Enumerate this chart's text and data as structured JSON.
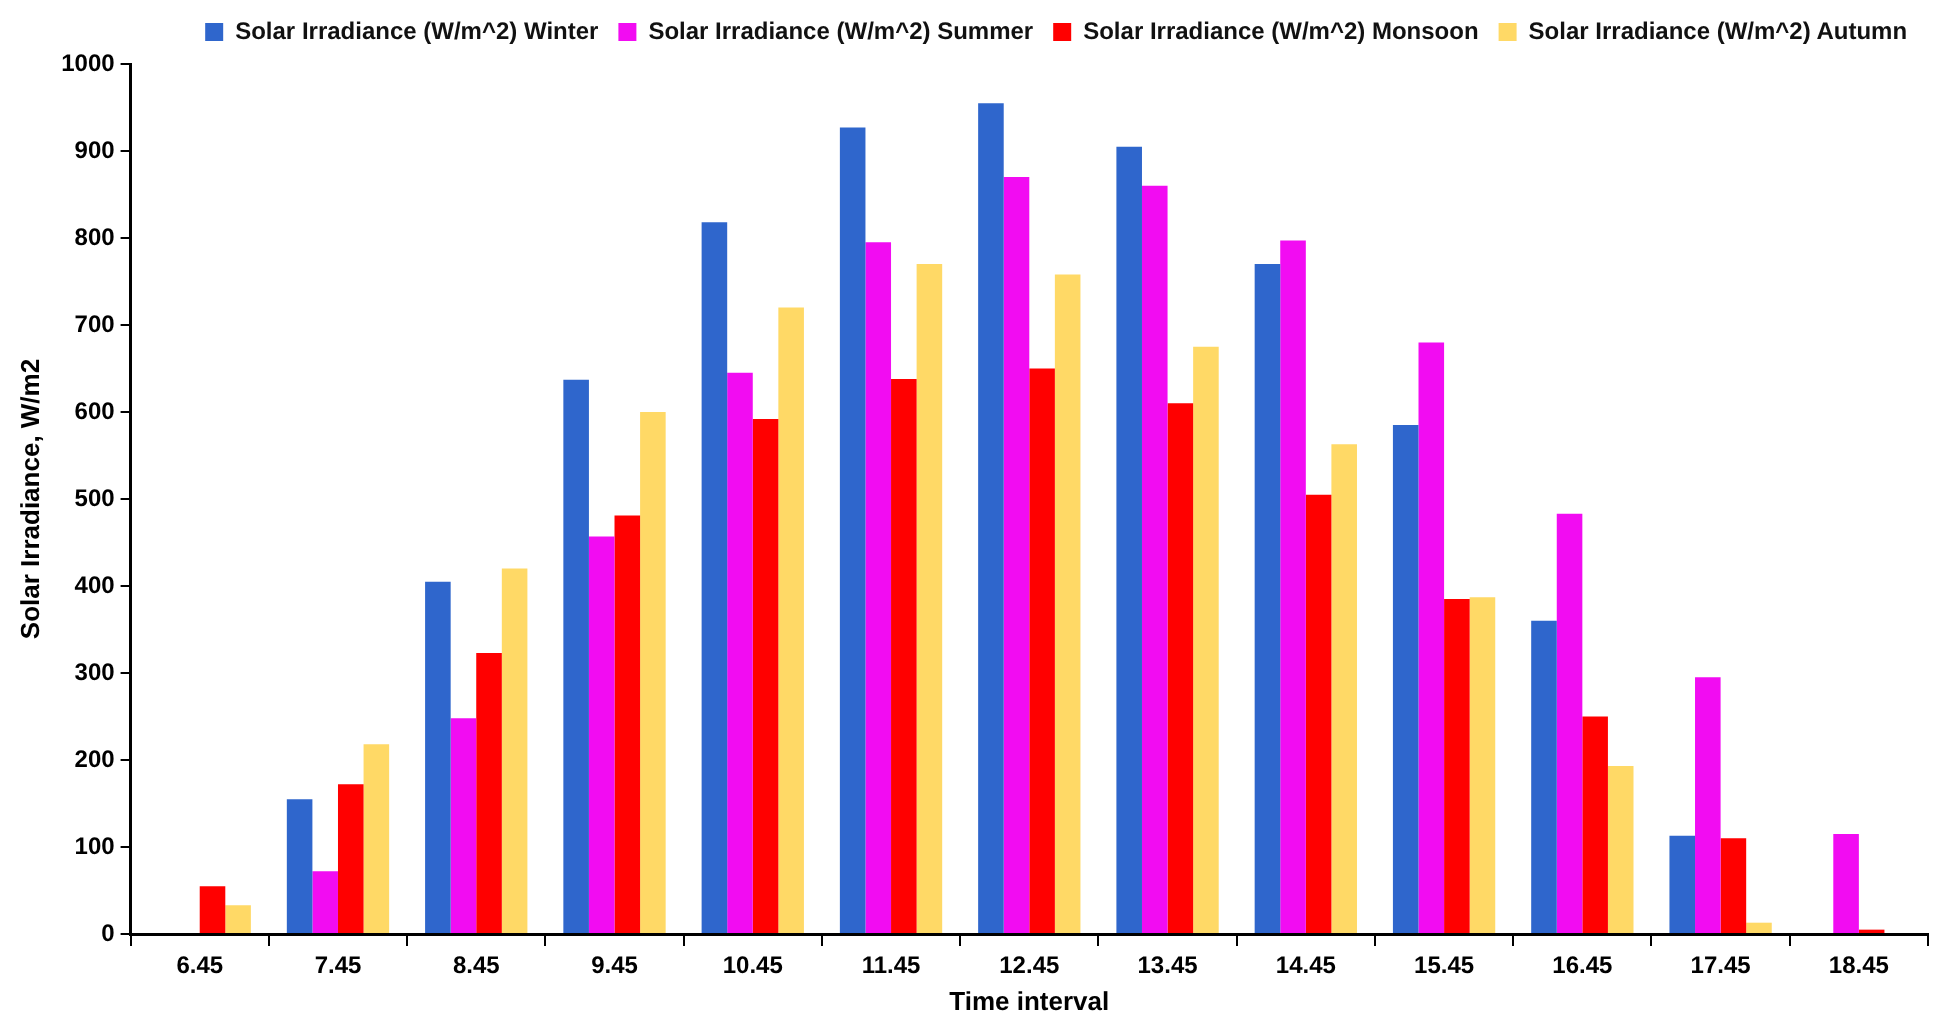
{
  "chart_data": {
    "type": "bar",
    "xlabel": "Time interval",
    "ylabel": "Solar Irradiance, W/m2",
    "categories": [
      "6.45",
      "7.45",
      "8.45",
      "9.45",
      "10.45",
      "11.45",
      "12.45",
      "13.45",
      "14.45",
      "15.45",
      "16.45",
      "17.45",
      "18.45"
    ],
    "series": [
      {
        "name": "Solar Irradiance (W/m^2) Winter",
        "color": "#2f66cc",
        "values": [
          0,
          155,
          405,
          637,
          818,
          927,
          955,
          905,
          770,
          585,
          360,
          113,
          0
        ]
      },
      {
        "name": "Solar Irradiance (W/m^2) Summer",
        "color": "#f20cf2",
        "values": [
          0,
          72,
          248,
          457,
          645,
          795,
          870,
          860,
          797,
          680,
          483,
          295,
          115
        ]
      },
      {
        "name": "Solar Irradiance (W/m^2) Monsoon",
        "color": "#ff0000",
        "values": [
          55,
          172,
          323,
          481,
          592,
          638,
          650,
          610,
          505,
          385,
          250,
          110,
          5
        ]
      },
      {
        "name": "Solar Irradiance (W/m^2) Autumn",
        "color": "#ffd966",
        "values": [
          33,
          218,
          420,
          600,
          720,
          770,
          758,
          675,
          563,
          387,
          193,
          13,
          0
        ]
      }
    ],
    "ylim": [
      0,
      1000
    ],
    "yticks": [
      0,
      100,
      200,
      300,
      400,
      500,
      600,
      700,
      800,
      900,
      1000
    ],
    "grid": false,
    "legend": "top"
  }
}
